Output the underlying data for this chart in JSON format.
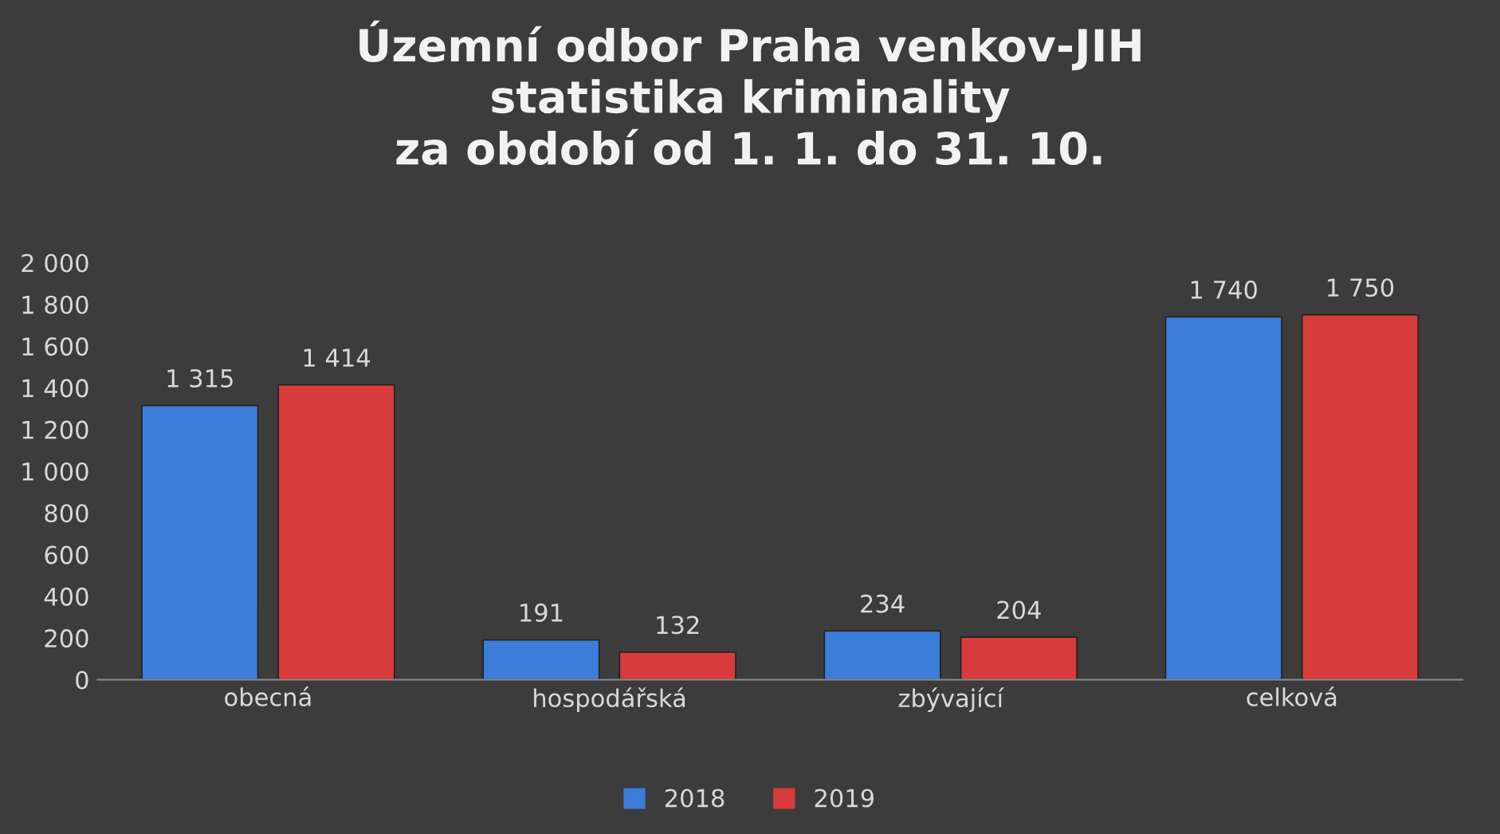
{
  "chart_data": {
    "type": "bar",
    "title": "Územní odbor Praha venkov-JIH\nstatistika kriminality\nza období od 1. 1. do 31. 10.",
    "categories": [
      "obecná",
      "hospodářská",
      "zbývající",
      "celková"
    ],
    "series": [
      {
        "name": "2018",
        "color": "#3b7dd8",
        "values": [
          1315,
          191,
          234,
          1740
        ],
        "value_labels": [
          "1 315",
          "191",
          "234",
          "1 740"
        ]
      },
      {
        "name": "2019",
        "color": "#d83b3b",
        "values": [
          1414,
          132,
          204,
          1750
        ],
        "value_labels": [
          "1 414",
          "132",
          "204",
          "1 750"
        ]
      }
    ],
    "ylim": [
      0,
      2000
    ],
    "yticks": [
      {
        "value": 0,
        "label": "0"
      },
      {
        "value": 200,
        "label": "200"
      },
      {
        "value": 400,
        "label": "400"
      },
      {
        "value": 600,
        "label": "600"
      },
      {
        "value": 800,
        "label": "800"
      },
      {
        "value": 1000,
        "label": "1 000"
      },
      {
        "value": 1200,
        "label": "1 200"
      },
      {
        "value": 1400,
        "label": "1 400"
      },
      {
        "value": 1600,
        "label": "1 600"
      },
      {
        "value": 1800,
        "label": "1 800"
      },
      {
        "value": 2000,
        "label": "2 000"
      }
    ],
    "grid": false,
    "legend": "bottom"
  }
}
